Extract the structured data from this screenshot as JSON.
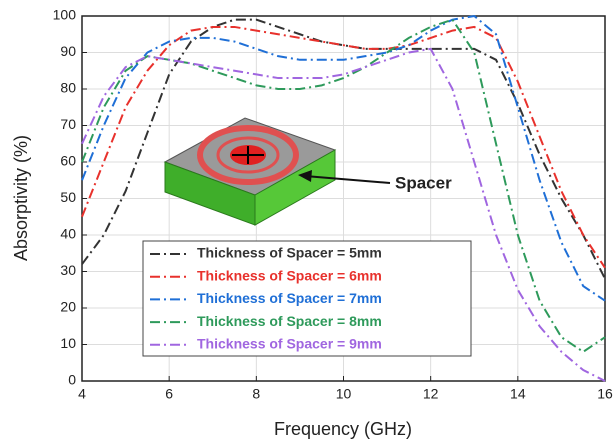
{
  "chart_data": {
    "type": "line",
    "xlabel": "Frequency (GHz)",
    "ylabel": "Absorptivity (%)",
    "annotation": "Spacer",
    "x": [
      4,
      4.5,
      5,
      5.5,
      6,
      6.5,
      7,
      7.5,
      8,
      8.5,
      9,
      9.5,
      10,
      10.5,
      11,
      11.5,
      12,
      12.5,
      13,
      13.5,
      14,
      14.5,
      15,
      15.5,
      16
    ],
    "series": [
      {
        "name": "Thickness of Spacer = 5mm",
        "color": "#333333",
        "values": [
          32,
          40,
          52,
          68,
          84,
          93,
          97,
          99,
          99,
          97,
          95,
          93,
          92,
          91,
          91,
          91,
          91,
          91,
          91,
          88,
          76,
          62,
          50,
          40,
          28
        ]
      },
      {
        "name": "Thickness of Spacer = 6mm",
        "color": "#e8312c",
        "values": [
          45,
          60,
          75,
          85,
          92,
          96,
          97,
          97,
          96,
          95,
          94,
          93,
          92,
          91,
          91,
          92,
          94,
          96,
          97,
          94,
          82,
          67,
          52,
          40,
          31
        ]
      },
      {
        "name": "Thickness of Spacer = 7mm",
        "color": "#1f6fd6",
        "values": [
          55,
          70,
          83,
          90,
          93,
          94,
          94,
          93,
          91,
          89,
          88,
          88,
          88,
          89,
          90,
          92,
          96,
          99,
          100,
          95,
          75,
          55,
          38,
          26,
          22
        ]
      },
      {
        "name": "Thickness of Spacer = 8mm",
        "color": "#2e9a5b",
        "values": [
          60,
          75,
          85,
          89,
          88,
          87,
          85,
          83,
          81,
          80,
          80,
          81,
          83,
          86,
          90,
          94,
          97,
          99,
          90,
          65,
          40,
          22,
          12,
          8,
          12
        ]
      },
      {
        "name": "Thickness of Spacer = 9mm",
        "color": "#a066e0",
        "values": [
          65,
          78,
          86,
          89,
          88,
          87,
          86,
          85,
          84,
          83,
          83,
          83,
          84,
          86,
          88,
          90,
          91,
          80,
          60,
          40,
          25,
          15,
          8,
          3,
          0
        ]
      }
    ],
    "xlim": [
      4,
      16
    ],
    "xticks": [
      4,
      6,
      8,
      10,
      12,
      14,
      16
    ],
    "ylim": [
      0,
      100
    ],
    "yticks": [
      0,
      10,
      20,
      30,
      40,
      50,
      60,
      70,
      80,
      90,
      100
    ],
    "grid": true
  }
}
